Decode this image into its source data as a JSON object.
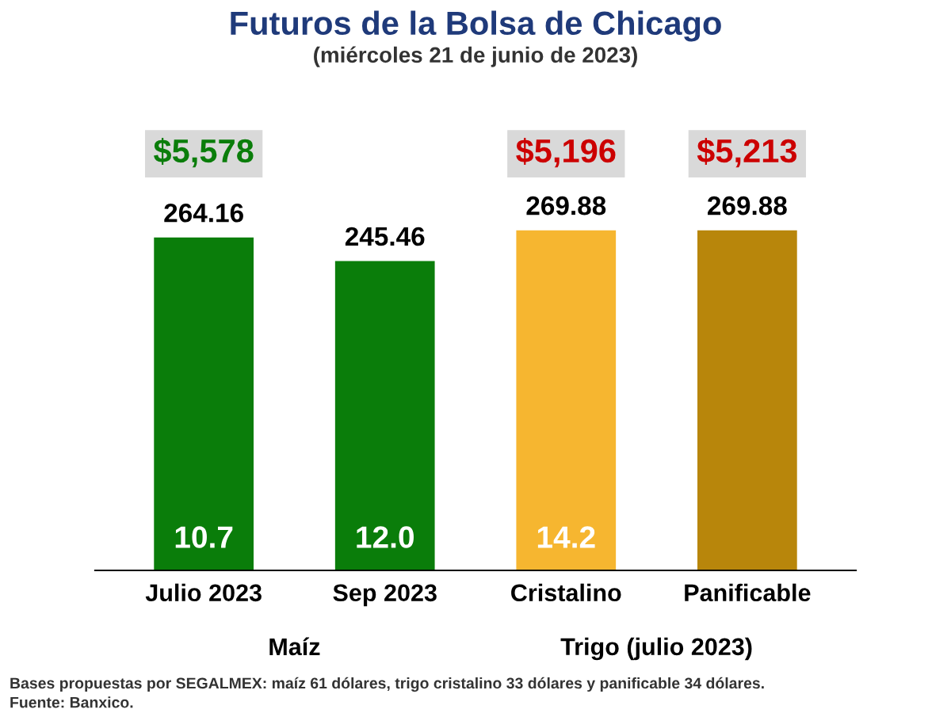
{
  "chart_data": {
    "type": "bar",
    "title": "Futuros de la Bolsa de Chicago",
    "subtitle": "(miércoles 21 de junio de 2023)",
    "categories": [
      "Julio 2023",
      "Sep 2023",
      "Cristalino",
      "Panificable"
    ],
    "values": [
      264.16,
      245.46,
      269.88,
      269.88
    ],
    "colors": [
      "#0a7d0a",
      "#0a7d0a",
      "#f6b630",
      "#b8860b"
    ],
    "data_labels": true,
    "annotations": [
      "$5,578",
      "$5,196",
      "$5,213",
      "10.7",
      "12.0",
      "14.2",
      "Maíz",
      "Trigo (julio 2023)",
      "Bases propuestas por SEGALMEX: maíz 61 dólares, trigo cristalino 33 dólares y panificable 34 dólares.",
      "Fuente: Banxico."
    ]
  }
}
